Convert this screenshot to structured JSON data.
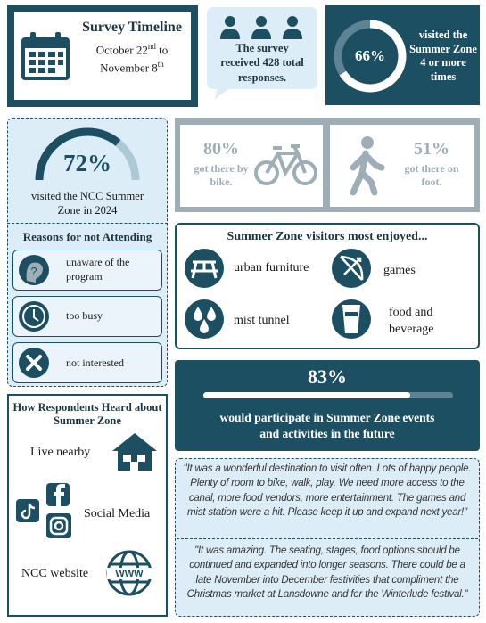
{
  "survey_timeline": {
    "title": "Survey Timeline",
    "start": "October 22",
    "start_suffix": "nd",
    "connector": "to",
    "end": "November 8",
    "end_suffix": "th"
  },
  "responses": {
    "text": "The survey received 428 total responses."
  },
  "zone4": {
    "value": 66,
    "label": "66%",
    "text": "visited the Summer Zone 4 or more times"
  },
  "ncc_2024": {
    "value": 72,
    "label": "72%",
    "text": "visited the NCC Summer Zone in 2024"
  },
  "bike": {
    "label": "80%",
    "text": "got there by bike."
  },
  "foot": {
    "label": "51%",
    "text": "got there on foot."
  },
  "reasons": {
    "title": "Reasons for not Attending",
    "items": [
      "unaware of the program",
      "too busy",
      "not interested"
    ]
  },
  "enjoyed": {
    "title": "Summer Zone visitors most enjoyed...",
    "items": [
      "urban furniture",
      "games",
      "mist tunnel",
      "food and beverage"
    ]
  },
  "future": {
    "value": 83,
    "label": "83%",
    "text": "would participate in Summer Zone events and activities in the future"
  },
  "heard": {
    "title": "How Respondents Heard about Summer Zone",
    "items": [
      "Live nearby",
      "Social Media",
      "NCC website"
    ]
  },
  "quotes": [
    "\"It was a wonderful destination to visit often. Lots of happy people. Plenty of room to bike, walk, play. We need more access to the canal, more food vendors, more entertainment. The games and mist station were a hit. Please keep it up and expand next year!\"",
    "\"It was amazing. The seating, stages, food options should be continued and expanded into longer seasons. There could be a late November into December festivities that compliment the Christmas market at Lansdowne and for the Winterlude festival.\""
  ]
}
